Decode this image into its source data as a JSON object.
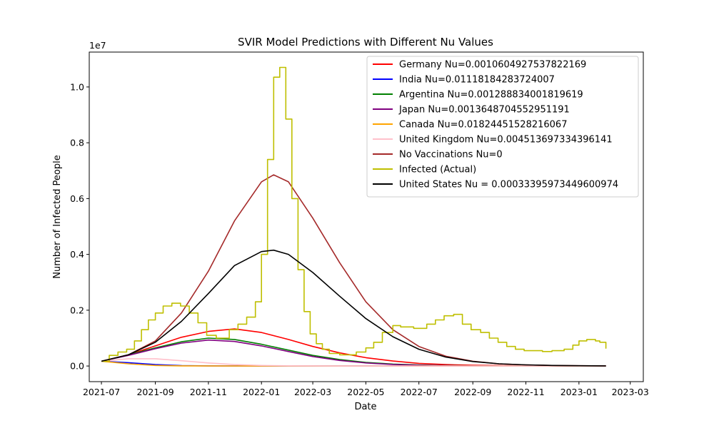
{
  "chart_data": {
    "type": "line",
    "title": "SVIR Model Predictions with Different Nu Values",
    "xlabel": "Date",
    "ylabel": "Number of Infected People",
    "y_offset_label": "1e7",
    "x_range": [
      "2021-06-17",
      "2023-03-16"
    ],
    "ylim": [
      -560000,
      11250000
    ],
    "x_ticks": [
      "2021-07",
      "2021-09",
      "2021-11",
      "2022-01",
      "2022-03",
      "2022-05",
      "2022-07",
      "2022-09",
      "2022-11",
      "2023-01",
      "2023-03"
    ],
    "y_ticks": [
      {
        "value": 0,
        "label": "0.0"
      },
      {
        "value": 2000000,
        "label": "0.2"
      },
      {
        "value": 4000000,
        "label": "0.4"
      },
      {
        "value": 6000000,
        "label": "0.6"
      },
      {
        "value": 8000000,
        "label": "0.8"
      },
      {
        "value": 10000000,
        "label": "1.0"
      }
    ],
    "legend_position": "top-right",
    "grid": false,
    "series": [
      {
        "name": "Germany Nu=0.0010604927537822169",
        "color": "#ff0000",
        "kind": "line",
        "x": [
          "2021-07-01",
          "2021-08-01",
          "2021-09-01",
          "2021-10-01",
          "2021-11-01",
          "2021-12-01",
          "2022-01-01",
          "2022-02-01",
          "2022-03-01",
          "2022-04-01",
          "2022-05-01",
          "2022-06-01",
          "2022-07-01",
          "2022-08-01",
          "2022-09-01",
          "2022-11-01",
          "2023-01-01",
          "2023-02-01"
        ],
        "y": [
          170000,
          400000,
          720000,
          1030000,
          1240000,
          1330000,
          1200000,
          950000,
          700000,
          470000,
          300000,
          180000,
          95000,
          50000,
          25000,
          8000,
          3000,
          1500
        ]
      },
      {
        "name": "India Nu=0.01118184283724007",
        "color": "#0000ff",
        "kind": "line",
        "x": [
          "2021-07-01",
          "2021-08-01",
          "2021-09-01",
          "2021-10-01",
          "2021-11-01",
          "2022-01-01",
          "2023-02-01"
        ],
        "y": [
          170000,
          120000,
          50000,
          15000,
          5000,
          0,
          0
        ]
      },
      {
        "name": "Argentina Nu=0.001288834001819619",
        "color": "#008000",
        "kind": "line",
        "x": [
          "2021-07-01",
          "2021-08-01",
          "2021-09-01",
          "2021-10-01",
          "2021-11-01",
          "2021-12-01",
          "2022-01-01",
          "2022-02-01",
          "2022-03-01",
          "2022-04-01",
          "2022-05-01",
          "2022-06-01",
          "2022-07-01",
          "2022-08-01",
          "2022-09-01",
          "2022-11-01",
          "2023-02-01"
        ],
        "y": [
          170000,
          400000,
          650000,
          870000,
          1000000,
          950000,
          780000,
          570000,
          380000,
          230000,
          130000,
          70000,
          35000,
          17000,
          8000,
          2000,
          500
        ]
      },
      {
        "name": "Japan Nu=0.0013648704552951191",
        "color": "#800080",
        "kind": "line",
        "x": [
          "2021-07-01",
          "2021-08-01",
          "2021-09-01",
          "2021-10-01",
          "2021-11-01",
          "2021-12-01",
          "2022-01-01",
          "2022-02-01",
          "2022-03-01",
          "2022-04-01",
          "2022-05-01",
          "2022-06-01",
          "2022-07-01",
          "2022-08-01",
          "2022-09-01",
          "2022-11-01",
          "2023-02-01"
        ],
        "y": [
          170000,
          380000,
          620000,
          820000,
          930000,
          880000,
          720000,
          520000,
          340000,
          200000,
          110000,
          55000,
          27000,
          13000,
          6000,
          1500,
          400
        ]
      },
      {
        "name": "Canada Nu=0.01824451528216067",
        "color": "#ffa500",
        "kind": "line",
        "x": [
          "2021-07-01",
          "2021-08-01",
          "2021-09-01",
          "2021-10-01",
          "2021-12-01",
          "2023-02-01"
        ],
        "y": [
          170000,
          80000,
          20000,
          5000,
          0,
          0
        ]
      },
      {
        "name": "United Kingdom Nu=0.004513697334396141",
        "color": "#ffc0cb",
        "kind": "line",
        "x": [
          "2021-07-01",
          "2021-08-01",
          "2021-09-01",
          "2021-10-01",
          "2021-11-01",
          "2021-12-01",
          "2022-01-01",
          "2022-02-01",
          "2022-04-01",
          "2023-02-01"
        ],
        "y": [
          170000,
          260000,
          260000,
          190000,
          110000,
          50000,
          20000,
          8000,
          0,
          0
        ]
      },
      {
        "name": "No Vaccinations Nu=0",
        "color": "#a52a2a",
        "kind": "line",
        "x": [
          "2021-07-01",
          "2021-08-01",
          "2021-09-01",
          "2021-10-01",
          "2021-11-01",
          "2021-12-01",
          "2022-01-01",
          "2022-01-15",
          "2022-02-01",
          "2022-03-01",
          "2022-04-01",
          "2022-05-01",
          "2022-06-01",
          "2022-07-01",
          "2022-08-01",
          "2022-09-01",
          "2022-10-01",
          "2022-11-01",
          "2022-12-01",
          "2023-01-01",
          "2023-02-01"
        ],
        "y": [
          170000,
          400000,
          900000,
          1900000,
          3400000,
          5200000,
          6600000,
          6850000,
          6600000,
          5300000,
          3700000,
          2300000,
          1300000,
          700000,
          350000,
          170000,
          80000,
          40000,
          20000,
          10000,
          5000
        ]
      },
      {
        "name": "Infected (Actual)",
        "color": "#bfbf00",
        "kind": "step",
        "x": [
          "2021-07-01",
          "2021-07-10",
          "2021-07-20",
          "2021-07-30",
          "2021-08-08",
          "2021-08-16",
          "2021-08-24",
          "2021-09-01",
          "2021-09-10",
          "2021-09-20",
          "2021-09-30",
          "2021-10-10",
          "2021-10-20",
          "2021-10-30",
          "2021-11-10",
          "2021-11-25",
          "2021-12-05",
          "2021-12-15",
          "2021-12-25",
          "2022-01-01",
          "2022-01-08",
          "2022-01-15",
          "2022-01-22",
          "2022-01-29",
          "2022-02-05",
          "2022-02-12",
          "2022-02-19",
          "2022-02-26",
          "2022-03-05",
          "2022-03-12",
          "2022-03-20",
          "2022-04-01",
          "2022-04-20",
          "2022-05-01",
          "2022-05-10",
          "2022-05-20",
          "2022-06-01",
          "2022-06-10",
          "2022-06-25",
          "2022-07-10",
          "2022-07-20",
          "2022-07-30",
          "2022-08-10",
          "2022-08-20",
          "2022-08-30",
          "2022-09-10",
          "2022-09-20",
          "2022-09-30",
          "2022-10-10",
          "2022-10-20",
          "2022-10-30",
          "2022-11-20",
          "2022-12-01",
          "2022-12-15",
          "2022-12-25",
          "2023-01-01",
          "2023-01-10",
          "2023-01-20",
          "2023-01-25",
          "2023-02-01"
        ],
        "y": [
          170000,
          380000,
          500000,
          600000,
          900000,
          1300000,
          1650000,
          1900000,
          2150000,
          2250000,
          2150000,
          1900000,
          1550000,
          1100000,
          1000000,
          1300000,
          1500000,
          1750000,
          2300000,
          4000000,
          7400000,
          10350000,
          10700000,
          8850000,
          6000000,
          3450000,
          1950000,
          1150000,
          800000,
          600000,
          450000,
          400000,
          500000,
          650000,
          850000,
          1200000,
          1450000,
          1400000,
          1350000,
          1500000,
          1650000,
          1800000,
          1850000,
          1500000,
          1300000,
          1200000,
          1000000,
          850000,
          700000,
          600000,
          550000,
          520000,
          550000,
          600000,
          750000,
          900000,
          950000,
          900000,
          850000,
          620000
        ]
      },
      {
        "name": "United States Nu = 0.00033395973449600974",
        "color": "#000000",
        "kind": "line",
        "x": [
          "2021-07-01",
          "2021-08-01",
          "2021-09-01",
          "2021-10-01",
          "2021-11-01",
          "2021-12-01",
          "2022-01-01",
          "2022-01-15",
          "2022-02-01",
          "2022-03-01",
          "2022-04-01",
          "2022-05-01",
          "2022-06-01",
          "2022-07-01",
          "2022-08-01",
          "2022-09-01",
          "2022-10-01",
          "2022-11-01",
          "2022-12-01",
          "2023-01-01",
          "2023-02-01"
        ],
        "y": [
          170000,
          400000,
          850000,
          1600000,
          2600000,
          3600000,
          4100000,
          4150000,
          4000000,
          3350000,
          2500000,
          1700000,
          1050000,
          600000,
          320000,
          160000,
          80000,
          40000,
          20000,
          10000,
          5000
        ]
      }
    ]
  }
}
